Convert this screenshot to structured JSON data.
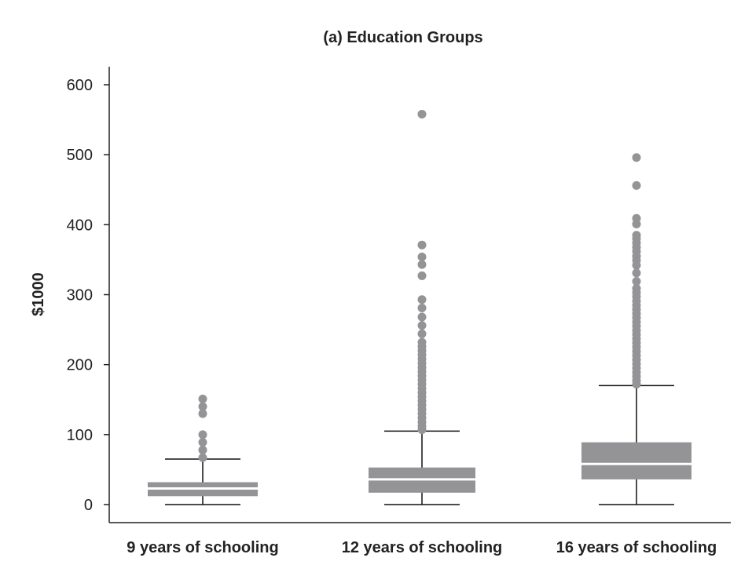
{
  "chart_data": {
    "type": "box",
    "title": "(a) Education Groups",
    "xlabel": "",
    "ylabel": "$1000",
    "ylim": [
      0,
      620
    ],
    "yticks": [
      0,
      100,
      200,
      300,
      400,
      500,
      600
    ],
    "grid": false,
    "colors": {
      "box": "#949496",
      "median": "#ffffff",
      "whisker": "#111111",
      "outlier": "#949496"
    },
    "categories": [
      "9 years of schooling",
      "12 years of schooling",
      "16 years of schooling"
    ],
    "boxes": [
      {
        "category": "9 years of schooling",
        "whisker_low": 0,
        "q1": 12,
        "median": 23,
        "q3": 32,
        "whisker_high": 65,
        "outliers": [
          67,
          78,
          89,
          100,
          130,
          140,
          151
        ]
      },
      {
        "category": "12 years of schooling",
        "whisker_low": 0,
        "q1": 17,
        "median": 36,
        "q3": 53,
        "whisker_high": 105,
        "outliers": [
          107,
          112,
          118,
          124,
          130,
          136,
          142,
          148,
          154,
          160,
          166,
          172,
          178,
          184,
          190,
          196,
          202,
          208,
          214,
          220,
          226,
          232,
          244,
          256,
          268,
          281,
          293,
          327,
          343,
          354,
          371,
          558
        ]
      },
      {
        "category": "16 years of schooling",
        "whisker_low": 0,
        "q1": 36,
        "median": 58,
        "q3": 89,
        "whisker_high": 170,
        "outliers": [
          172,
          177,
          183,
          189,
          195,
          201,
          207,
          213,
          219,
          225,
          231,
          237,
          243,
          249,
          255,
          261,
          267,
          273,
          279,
          285,
          291,
          297,
          303,
          309,
          319,
          331,
          342,
          349,
          355,
          362,
          368,
          374,
          380,
          385,
          401,
          409,
          456,
          496
        ]
      }
    ]
  }
}
